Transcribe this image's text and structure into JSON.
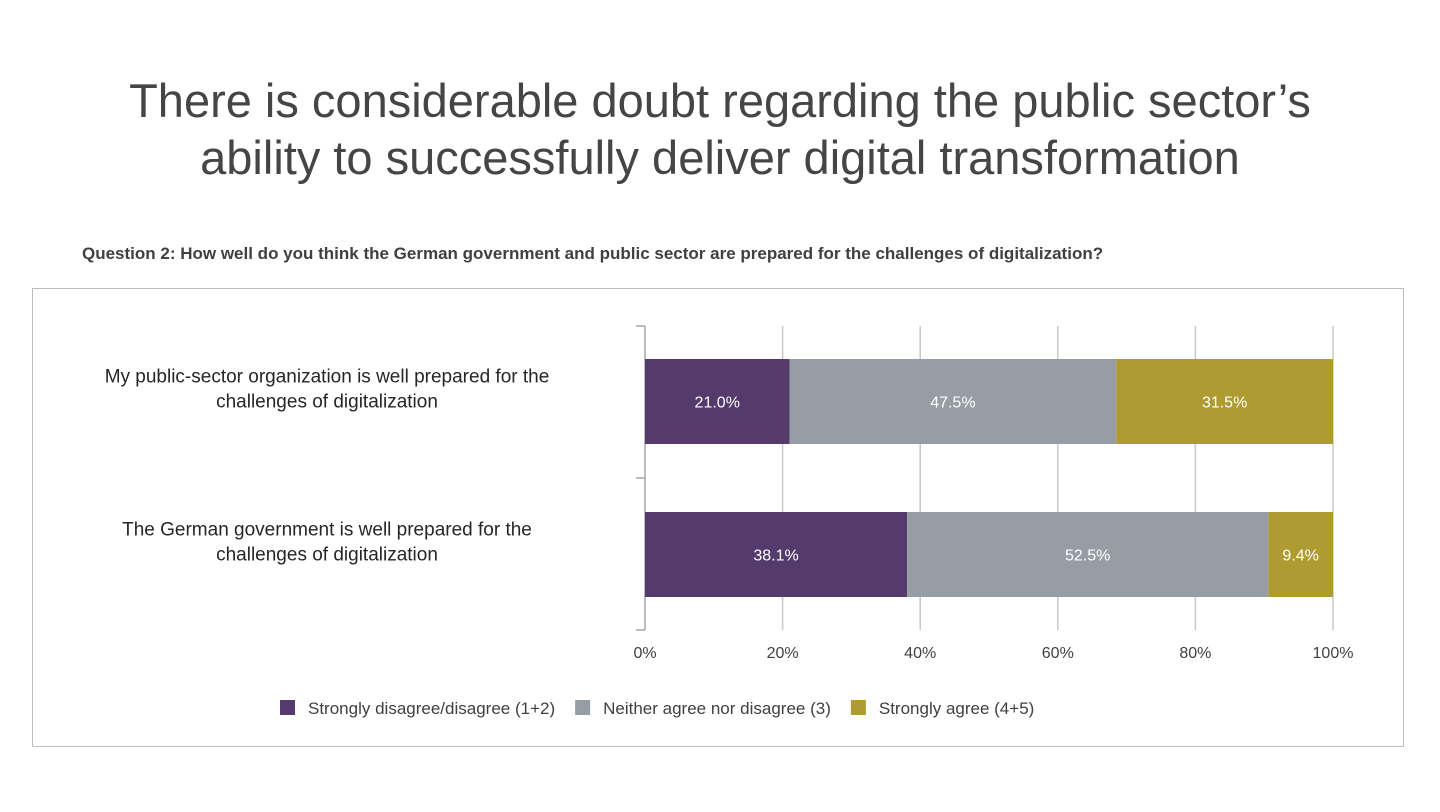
{
  "title_lines": [
    "There is considerable doubt regarding the public sector’s",
    "ability to successfully deliver digital transformation"
  ],
  "question": "Question 2: How well do you think the German government and public sector are prepared for the challenges of digitalization?",
  "chart_data": {
    "type": "bar",
    "orientation": "horizontal",
    "stacked": true,
    "categories": [
      [
        "My public-sector organization is well prepared for the",
        "challenges of digitalization"
      ],
      [
        "The German government is well prepared for the",
        "challenges of digitalization"
      ]
    ],
    "series": [
      {
        "name": "Strongly disagree/disagree (1+2)",
        "values": [
          21.0,
          38.1
        ],
        "labels": [
          "21.0%",
          "38.1%"
        ],
        "color": "#553b6b"
      },
      {
        "name": "Neither agree nor disagree (3)",
        "values": [
          47.5,
          52.5
        ],
        "labels": [
          "47.5%",
          "52.5%"
        ],
        "color": "#969da4"
      },
      {
        "name": "Strongly agree (4+5)",
        "values": [
          31.5,
          9.4
        ],
        "labels": [
          "31.5%",
          "9.4%"
        ],
        "color": "#ae9c33"
      }
    ],
    "x_ticks": [
      "0%",
      "20%",
      "40%",
      "60%",
      "80%",
      "100%"
    ],
    "xlim": [
      0,
      100
    ],
    "grid": true,
    "legend_position": "bottom"
  }
}
